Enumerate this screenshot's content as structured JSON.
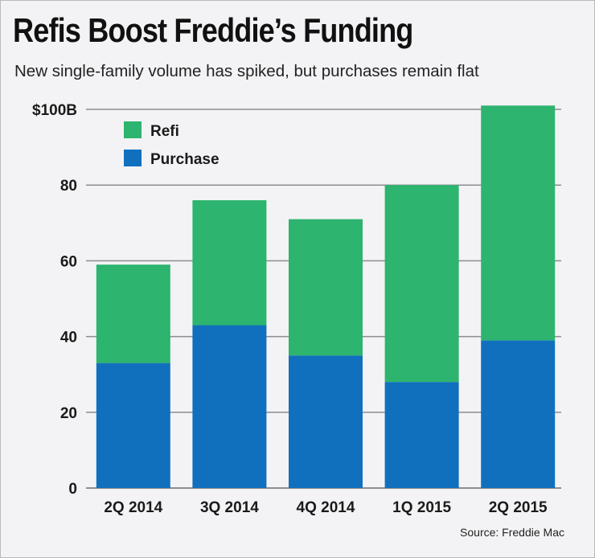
{
  "header": {
    "title": "Refis Boost Freddie’s Funding",
    "subtitle": "New single-family volume has spiked, but purchases remain flat"
  },
  "footer": {
    "source": "Source: Freddie Mac"
  },
  "colors": {
    "refi": "#2db46f",
    "purchase": "#1170bd",
    "grid": "#8d8d91",
    "background": "#f3f3f5"
  },
  "chart_data": {
    "type": "bar",
    "stacked": true,
    "title": "Refis Boost Freddie’s Funding",
    "subtitle": "New single-family volume has spiked, but purchases remain flat",
    "xlabel": "",
    "ylabel": "",
    "categories": [
      "2Q 2014",
      "3Q 2014",
      "4Q 2014",
      "1Q 2015",
      "2Q 2015"
    ],
    "series": [
      {
        "name": "Purchase",
        "color": "#1170bd",
        "values": [
          33,
          43,
          35,
          28,
          39
        ]
      },
      {
        "name": "Refi",
        "color": "#2db46f",
        "values": [
          26,
          33,
          36,
          52,
          62
        ]
      }
    ],
    "legend": {
      "placement": "top-left",
      "items": [
        "Refi",
        "Purchase"
      ]
    },
    "ylim": [
      0,
      100
    ],
    "yticks": [
      0,
      20,
      40,
      60,
      80,
      100
    ],
    "ytick_labels": [
      "0",
      "20",
      "40",
      "60",
      "80",
      "$100B"
    ],
    "grid": true
  }
}
